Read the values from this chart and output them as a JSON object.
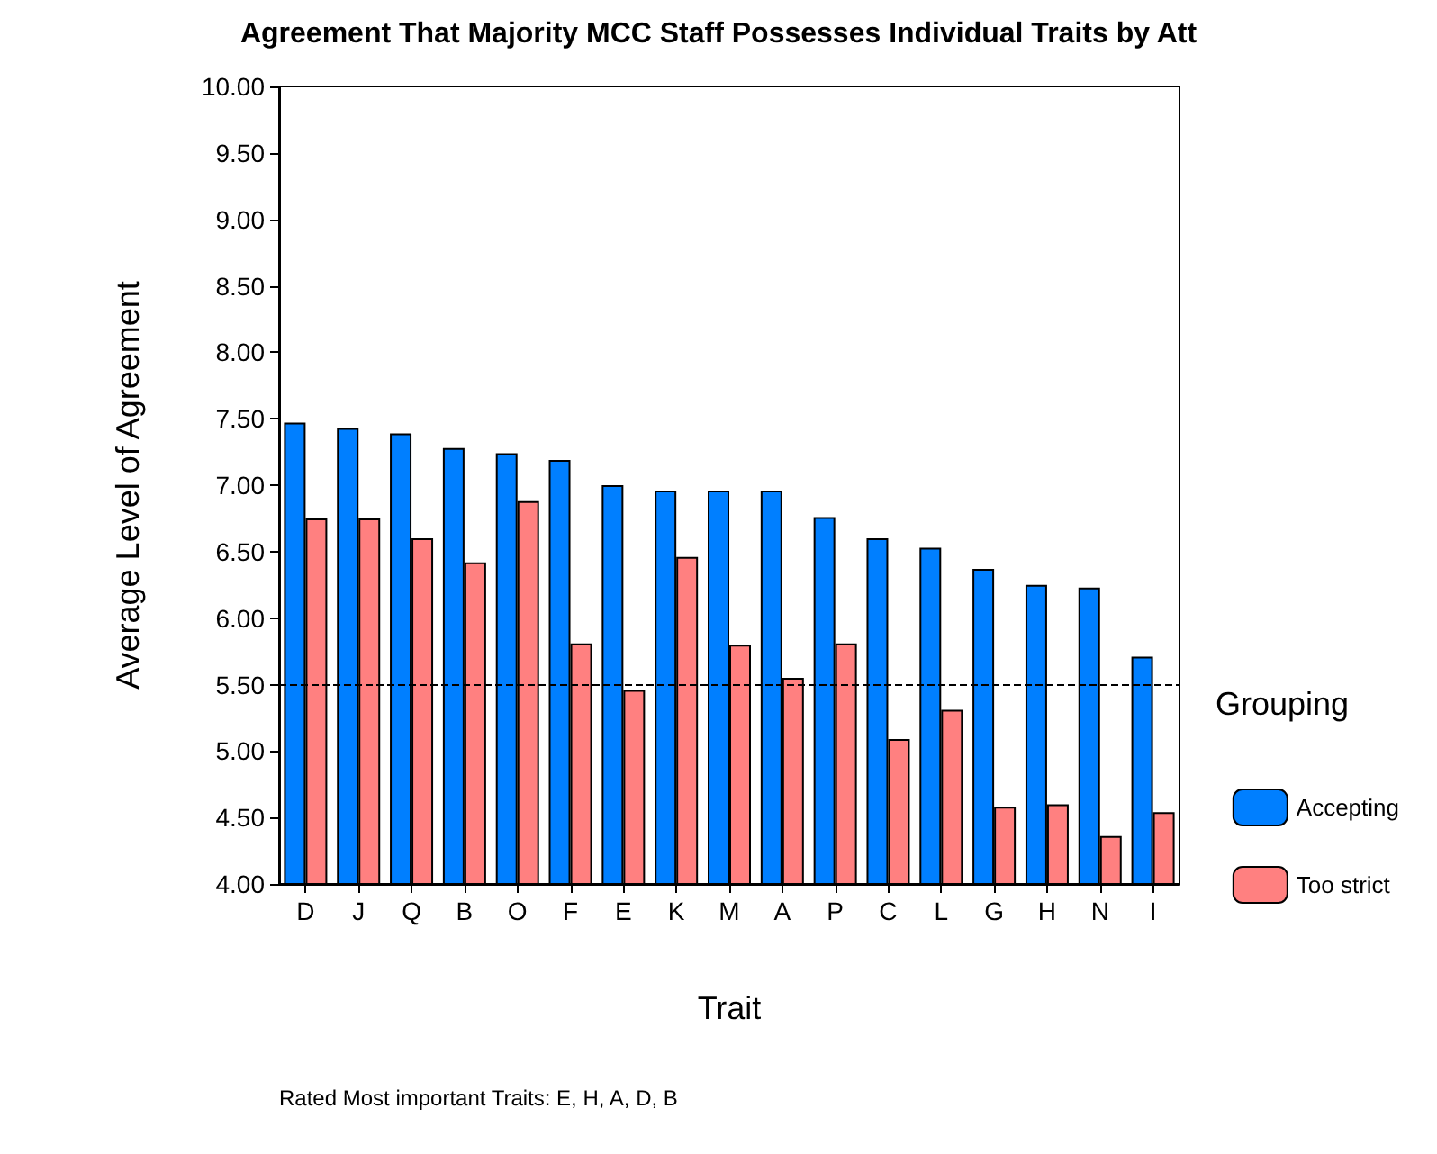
{
  "chart_data": {
    "type": "bar",
    "title": "Agreement That Majority MCC Staff Possesses Individual Traits by Att",
    "xlabel": "Trait",
    "ylabel": "Average Level of Agreement",
    "legend_title": "Grouping",
    "categories": [
      "D",
      "J",
      "Q",
      "B",
      "O",
      "F",
      "E",
      "K",
      "M",
      "A",
      "P",
      "C",
      "L",
      "G",
      "H",
      "N",
      "I"
    ],
    "series": [
      {
        "name": "Accepting",
        "color": "#007fff",
        "values": [
          7.47,
          7.43,
          7.39,
          7.28,
          7.24,
          7.19,
          7.0,
          6.96,
          6.96,
          6.96,
          6.76,
          6.6,
          6.53,
          6.37,
          6.25,
          6.23,
          5.71
        ]
      },
      {
        "name": "Too strict",
        "color": "#ff8080",
        "values": [
          6.75,
          6.75,
          6.6,
          6.42,
          6.88,
          5.81,
          5.46,
          6.46,
          5.8,
          5.55,
          5.81,
          5.09,
          5.31,
          4.58,
          4.6,
          4.36,
          4.54
        ]
      }
    ],
    "ylim": [
      4,
      10
    ],
    "yticks": [
      {
        "value": 4,
        "label": "4.00"
      },
      {
        "value": 4.5,
        "label": "4.50"
      },
      {
        "value": 5,
        "label": "5.00"
      },
      {
        "value": 5.5,
        "label": "5.50"
      },
      {
        "value": 6,
        "label": "6.00"
      },
      {
        "value": 6.5,
        "label": "6.50"
      },
      {
        "value": 7,
        "label": "7.00"
      },
      {
        "value": 7.5,
        "label": "7.50"
      },
      {
        "value": 8,
        "label": "8.00"
      },
      {
        "value": 8.5,
        "label": "8.50"
      },
      {
        "value": 9,
        "label": "9.00"
      },
      {
        "value": 9.5,
        "label": "9.50"
      },
      {
        "value": 10,
        "label": "10.00"
      }
    ],
    "ref_lines": [
      {
        "axis": "y",
        "value": 5.5,
        "line_style": "dashed",
        "color": "#000000"
      }
    ],
    "annotations": [
      "Rated Most important Traits: E, H, A, D, B"
    ],
    "grid": false,
    "legend": "right"
  }
}
